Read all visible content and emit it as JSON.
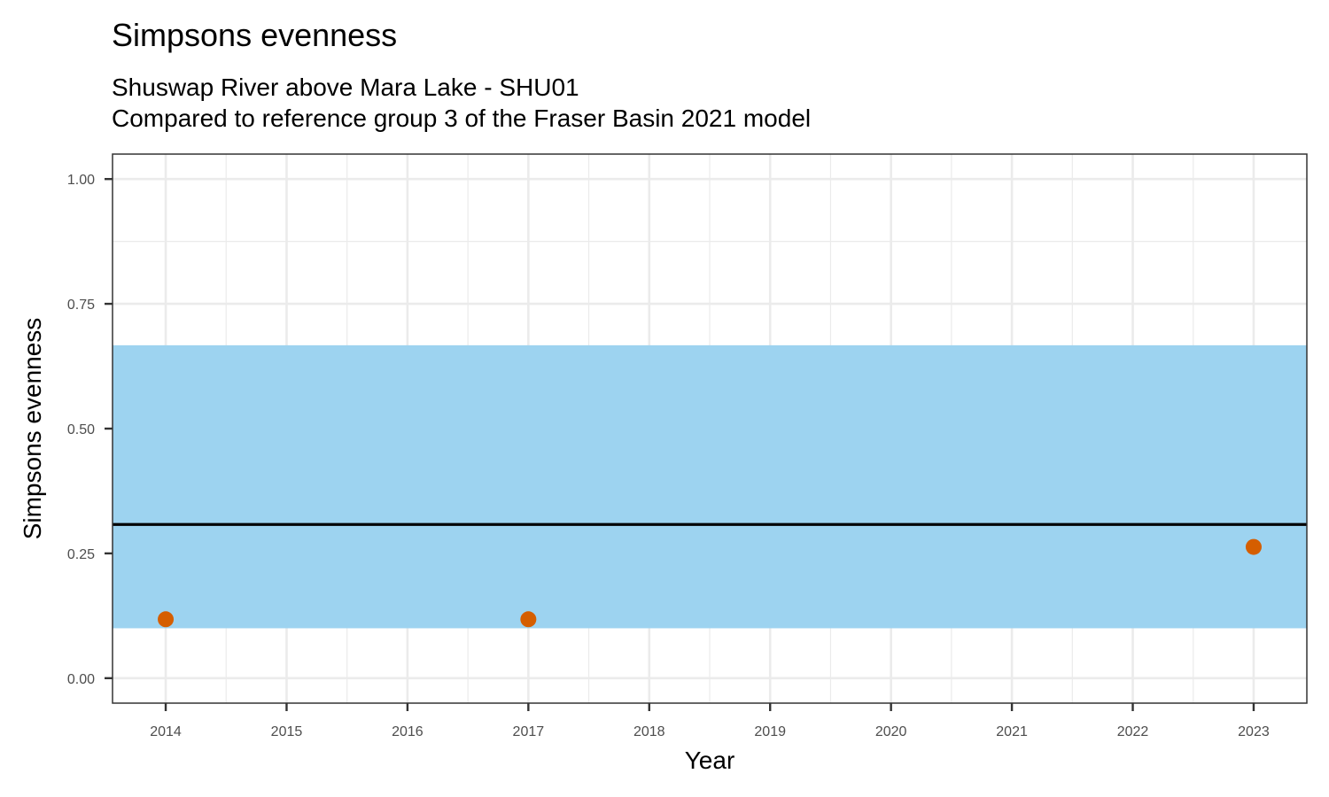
{
  "chart_data": {
    "type": "scatter",
    "title": "Simpsons evenness",
    "subtitle_lines": [
      "Shuswap River above Mara Lake - SHU01",
      "Compared to reference group 3 of the Fraser Basin 2021 model"
    ],
    "xlabel": "Year",
    "ylabel": "Simpsons evenness",
    "xlim": [
      2013.56,
      2023.44
    ],
    "ylim": [
      -0.05,
      1.05
    ],
    "x_ticks": [
      2014,
      2015,
      2016,
      2017,
      2018,
      2019,
      2020,
      2021,
      2022,
      2023
    ],
    "x_tick_labels": [
      "2014",
      "2015",
      "2016",
      "2017",
      "2018",
      "2019",
      "2020",
      "2021",
      "2022",
      "2023"
    ],
    "y_ticks": [
      0,
      0.25,
      0.5,
      0.75,
      1
    ],
    "y_tick_labels": [
      "0.00",
      "0.25",
      "0.50",
      "0.75",
      "1.00"
    ],
    "grid": true,
    "reference_band": {
      "ymin": 0.1,
      "ymax": 0.667,
      "color": "#9ad2f0"
    },
    "reference_line": {
      "y": 0.308,
      "color": "#000000"
    },
    "series": [
      {
        "color": "#d55e00",
        "points": [
          {
            "x": 2014,
            "y": 0.118
          },
          {
            "x": 2017,
            "y": 0.118
          },
          {
            "x": 2023,
            "y": 0.263
          }
        ]
      }
    ]
  }
}
